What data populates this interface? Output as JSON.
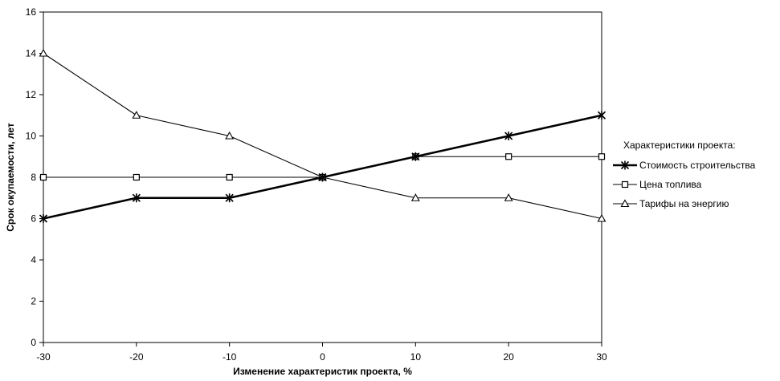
{
  "chart_data": {
    "type": "line",
    "title": "",
    "xlabel": "Изменение характеристик проекта, %",
    "ylabel": "Срок окупаемости, лет",
    "x": [
      -30,
      -20,
      -10,
      0,
      10,
      20,
      30
    ],
    "x_tick_labels": [
      "-30",
      "-20",
      "-10",
      "0",
      "10",
      "20",
      "30"
    ],
    "y_tick_labels": [
      "0",
      "2",
      "4",
      "6",
      "8",
      "10",
      "12",
      "14",
      "16"
    ],
    "xlim": [
      -30,
      30
    ],
    "ylim": [
      0,
      16
    ],
    "grid": false,
    "legend": {
      "title": "Характеристики проекта:",
      "placement": "right"
    },
    "series": [
      {
        "name": "Стоимость строительства",
        "marker": "asterisk",
        "line_style": "bold",
        "color": "#000000",
        "values": [
          6,
          7,
          7,
          8,
          9,
          10,
          11
        ]
      },
      {
        "name": "Цена топлива",
        "marker": "square",
        "line_style": "thin",
        "color": "#000000",
        "values": [
          8,
          8,
          8,
          8,
          9,
          9,
          9
        ]
      },
      {
        "name": "Тарифы на энергию",
        "marker": "triangle",
        "line_style": "thin",
        "color": "#000000",
        "values": [
          14,
          11,
          10,
          8,
          7,
          7,
          6
        ]
      }
    ]
  }
}
